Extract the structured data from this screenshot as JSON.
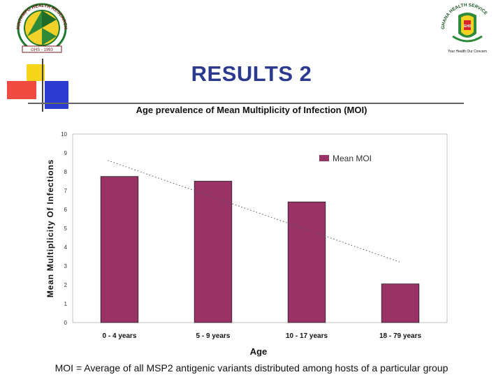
{
  "slide": {
    "title": "RESULTS 2",
    "caption": "MOI = Average of all MSP2 antigenic variants distributed among hosts of a particular group"
  },
  "logos": {
    "left": {
      "ring_text": "KINTAMPO HEALTH RESEARCH CENTRE",
      "banner_text": "GHS - 1993"
    },
    "right": {
      "ring_text": "GHANA HEALTH SERVICE",
      "motto": "Your Health Our Concern",
      "shield_text": "GHS"
    }
  },
  "colors": {
    "bar": "#993366",
    "trend": "#555555",
    "title": "#2b3a8f",
    "plot_border": "#c0c0c0"
  },
  "chart_data": {
    "type": "bar",
    "title": "Age prevalence of Mean Multiplicity of Infection (MOI)",
    "xlabel": "Age",
    "ylabel": "Mean Multiplicity Of Infections",
    "categories": [
      "0 - 4 years",
      "5 - 9 years",
      "10 - 17 years",
      "18 - 79 years"
    ],
    "series": [
      {
        "name": "Mean MOI",
        "values": [
          7.75,
          7.5,
          6.4,
          2.05
        ]
      }
    ],
    "trendline": {
      "type": "linear",
      "style": "dotted",
      "start": 8.6,
      "end": 3.2
    },
    "ylim": [
      0,
      10
    ],
    "yticks": [
      0,
      1,
      2,
      3,
      4,
      5,
      6,
      7,
      8,
      9,
      10
    ],
    "grid": false,
    "legend": "top-right"
  }
}
